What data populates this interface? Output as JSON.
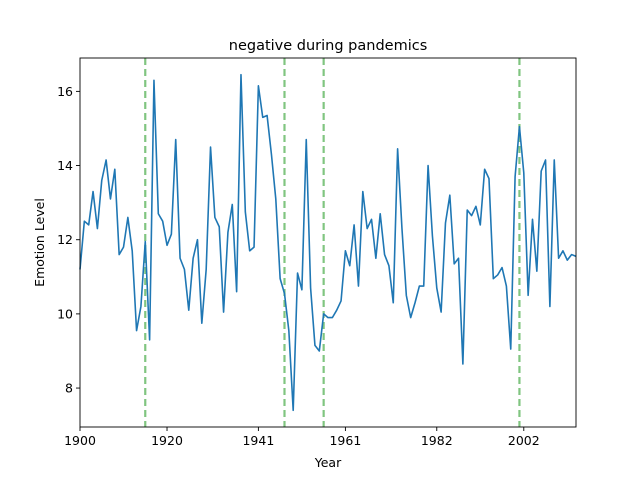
{
  "chart_data": {
    "type": "line",
    "title": "negative during pandemics",
    "xlabel": "Year",
    "ylabel": "Emotion Level",
    "xlim": [
      1900,
      2014
    ],
    "ylim": [
      6.95,
      16.9
    ],
    "xticks": [
      1900,
      1920,
      1941,
      1961,
      1982,
      2002
    ],
    "yticks": [
      8,
      10,
      12,
      14,
      16
    ],
    "grid": false,
    "legend": "none",
    "line_color": "#1f77b4",
    "vline_color": "#2ca02c",
    "pandemic_years": [
      1915,
      1947,
      1956,
      2001
    ],
    "series": [
      {
        "x": [
          1900,
          1901,
          1902,
          1903,
          1904,
          1905,
          1906,
          1907,
          1908,
          1909,
          1910,
          1911,
          1912,
          1913,
          1914,
          1915,
          1916,
          1917,
          1918,
          1919,
          1920,
          1921,
          1922,
          1923,
          1924,
          1925,
          1926,
          1927,
          1928,
          1929,
          1930,
          1931,
          1932,
          1933,
          1934,
          1935,
          1936,
          1937,
          1938,
          1939,
          1940,
          1941,
          1942,
          1943,
          1944,
          1945,
          1946,
          1947,
          1948,
          1949,
          1950,
          1951,
          1952,
          1953,
          1954,
          1955,
          1956,
          1957,
          1958,
          1959,
          1960,
          1961,
          1962,
          1963,
          1964,
          1965,
          1966,
          1967,
          1968,
          1969,
          1970,
          1971,
          1972,
          1973,
          1974,
          1975,
          1976,
          1977,
          1978,
          1979,
          1980,
          1981,
          1982,
          1983,
          1984,
          1985,
          1986,
          1987,
          1988,
          1989,
          1990,
          1991,
          1992,
          1993,
          1994,
          1995,
          1996,
          1997,
          1998,
          1999,
          2000,
          2001,
          2002,
          2003,
          2004,
          2005,
          2006,
          2007,
          2008,
          2009,
          2010,
          2011,
          2012,
          2013,
          2014
        ],
        "values": [
          11.2,
          12.5,
          12.4,
          13.3,
          12.3,
          13.6,
          14.15,
          13.1,
          13.9,
          11.6,
          11.8,
          12.6,
          11.7,
          9.55,
          10.2,
          11.95,
          9.3,
          16.3,
          12.7,
          12.5,
          11.85,
          12.15,
          14.7,
          11.5,
          11.2,
          10.1,
          11.5,
          12.0,
          9.75,
          11.2,
          14.5,
          12.6,
          12.35,
          10.05,
          12.2,
          12.95,
          10.6,
          16.45,
          12.75,
          11.7,
          11.8,
          16.15,
          15.3,
          15.35,
          14.3,
          13.1,
          10.95,
          10.55,
          9.55,
          7.4,
          11.1,
          10.65,
          14.7,
          10.7,
          9.15,
          9.0,
          10.0,
          9.9,
          9.9,
          10.1,
          10.35,
          11.7,
          11.3,
          12.4,
          10.75,
          13.3,
          12.3,
          12.55,
          11.5,
          12.7,
          11.6,
          11.3,
          10.3,
          14.45,
          12.3,
          10.5,
          9.9,
          10.3,
          10.75,
          10.75,
          14.0,
          12.1,
          10.7,
          10.05,
          12.45,
          13.2,
          11.35,
          11.5,
          8.65,
          12.8,
          12.65,
          12.9,
          12.4,
          13.9,
          13.65,
          10.95,
          11.05,
          11.25,
          10.75,
          9.05,
          13.7,
          15.05,
          13.8,
          10.5,
          12.55,
          11.15,
          13.85,
          14.15,
          10.2,
          14.15,
          11.5,
          11.7,
          11.45,
          11.6,
          11.55
        ]
      }
    ]
  }
}
